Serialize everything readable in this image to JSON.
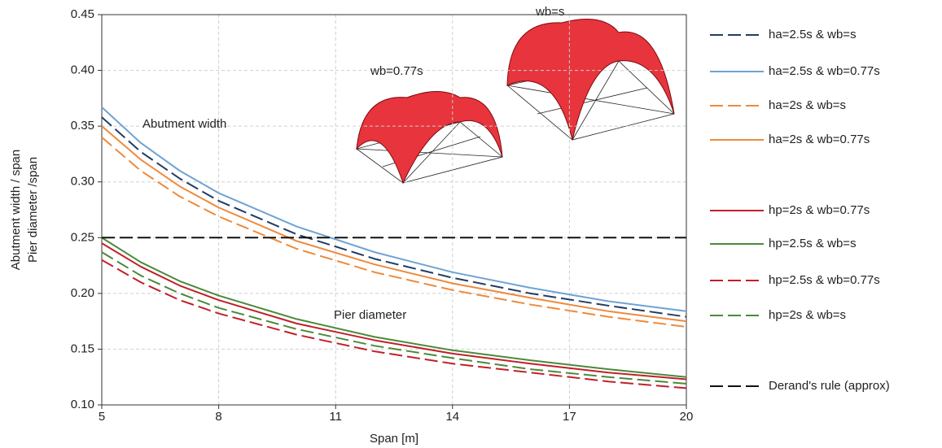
{
  "chart_data": {
    "type": "line",
    "x_label": "Span [m]",
    "y_label": [
      "Abutment width / span",
      "Pier diameter /span"
    ],
    "annotations": [
      "Abutment width",
      "Pier diameter",
      "wb=0.77s",
      "wb=s"
    ],
    "x": [
      5,
      6,
      7,
      8,
      10,
      12,
      14,
      16,
      18,
      20
    ],
    "xlim": [
      5,
      20
    ],
    "xticks": [
      5,
      8,
      11,
      14,
      17,
      20
    ],
    "ylim": [
      0.1,
      0.45
    ],
    "yticks": [
      {
        "value": 0.1,
        "label": "0.10"
      },
      {
        "value": 0.15,
        "label": "0.15"
      },
      {
        "value": 0.2,
        "label": "0.20"
      },
      {
        "value": 0.25,
        "label": "0.25"
      },
      {
        "value": 0.3,
        "label": "0.30"
      },
      {
        "value": 0.35,
        "label": "0.35"
      },
      {
        "value": 0.4,
        "label": "0.40"
      },
      {
        "value": 0.45,
        "label": "0.45"
      }
    ],
    "grid": true,
    "legend": "right",
    "series": [
      {
        "name": "ha=2.5s & wb=s",
        "color": "#1f3d66",
        "dashed": true,
        "values": [
          0.358,
          0.327,
          0.303,
          0.283,
          0.253,
          0.231,
          0.214,
          0.2,
          0.189,
          0.179
        ]
      },
      {
        "name": "ha=2.5s & wb=0.77s",
        "color": "#6fa3d4",
        "dashed": false,
        "values": [
          0.367,
          0.335,
          0.31,
          0.29,
          0.26,
          0.237,
          0.219,
          0.205,
          0.193,
          0.184
        ]
      },
      {
        "name": "ha=2s & wb=s",
        "color": "#ed8a3c",
        "dashed": true,
        "values": [
          0.34,
          0.31,
          0.287,
          0.269,
          0.24,
          0.219,
          0.203,
          0.19,
          0.179,
          0.17
        ]
      },
      {
        "name": "ha=2s & wb=0.77s",
        "color": "#ed8a3c",
        "dashed": false,
        "values": [
          0.35,
          0.32,
          0.296,
          0.277,
          0.247,
          0.226,
          0.209,
          0.196,
          0.184,
          0.175
        ]
      },
      {
        "name": "hp=2s & wb=0.77s",
        "color": "#c0202a",
        "dashed": false,
        "values": [
          0.245,
          0.224,
          0.207,
          0.194,
          0.173,
          0.158,
          0.146,
          0.137,
          0.129,
          0.123
        ]
      },
      {
        "name": "hp=2.5s & wb=s",
        "color": "#4a8a3a",
        "dashed": false,
        "values": [
          0.25,
          0.228,
          0.211,
          0.198,
          0.177,
          0.161,
          0.149,
          0.14,
          0.132,
          0.125
        ]
      },
      {
        "name": "hp=2.5s & wb=0.77s",
        "color": "#c0202a",
        "dashed": true,
        "values": [
          0.23,
          0.21,
          0.194,
          0.182,
          0.163,
          0.148,
          0.137,
          0.129,
          0.121,
          0.115
        ]
      },
      {
        "name": "hp=2s & wb=s",
        "color": "#4a8a3a",
        "dashed": true,
        "values": [
          0.237,
          0.216,
          0.2,
          0.187,
          0.168,
          0.153,
          0.142,
          0.132,
          0.125,
          0.119
        ]
      },
      {
        "name": "Derand's rule (approx)",
        "color": "#111111",
        "dashed": true,
        "values": [
          0.25,
          0.25,
          0.25,
          0.25,
          0.25,
          0.25,
          0.25,
          0.25,
          0.25,
          0.25
        ]
      }
    ]
  }
}
